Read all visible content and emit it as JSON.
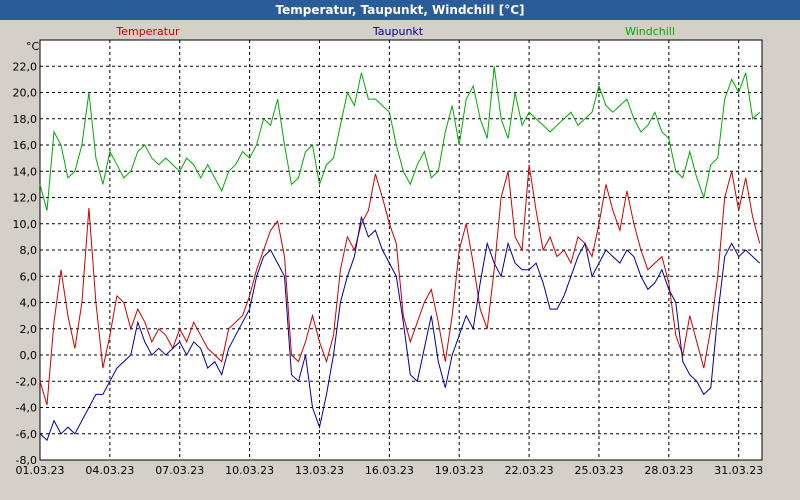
{
  "title": "Temperatur, Taupunkt, Windchill [°C]",
  "colors": {
    "plot_bg": "#ffffff",
    "grid": "#000000",
    "temperature": "#cc0000",
    "dewpoint": "#000099",
    "windchill": "#00aa00"
  },
  "chart_data": {
    "type": "line",
    "title": "Temperatur, Taupunkt, Windchill [°C]",
    "ylabel": "°C",
    "ylim": [
      -8,
      24
    ],
    "yticks": [
      "-8,0",
      "-6,0",
      "-4,0",
      "-2,0",
      "0,0",
      "2,0",
      "4,0",
      "6,0",
      "8,0",
      "10,0",
      "12,0",
      "14,0",
      "16,0",
      "18,0",
      "20,0",
      "22,0"
    ],
    "xticks": [
      "01.03.23",
      "04.03.23",
      "07.03.23",
      "10.03.23",
      "13.03.23",
      "16.03.23",
      "19.03.23",
      "22.03.23",
      "25.03.23",
      "28.03.23",
      "31.03.23"
    ],
    "x_day_range": [
      0,
      31
    ],
    "grid": true,
    "legend_placement": "top",
    "series": [
      {
        "name": "Temperatur",
        "color": "#cc0000",
        "days": [
          0,
          0.3,
          0.6,
          0.9,
          1.2,
          1.5,
          1.8,
          2.1,
          2.4,
          2.7,
          3.0,
          3.3,
          3.6,
          3.9,
          4.2,
          4.5,
          4.8,
          5.1,
          5.4,
          5.7,
          6.0,
          6.3,
          6.6,
          6.9,
          7.2,
          7.5,
          7.8,
          8.1,
          8.4,
          8.7,
          9.0,
          9.3,
          9.6,
          9.9,
          10.2,
          10.5,
          10.8,
          11.1,
          11.4,
          11.7,
          12.0,
          12.3,
          12.6,
          12.9,
          13.2,
          13.5,
          13.8,
          14.1,
          14.4,
          14.7,
          15.0,
          15.3,
          15.6,
          15.9,
          16.2,
          16.5,
          16.8,
          17.1,
          17.4,
          17.7,
          18.0,
          18.3,
          18.6,
          18.9,
          19.2,
          19.5,
          19.8,
          20.1,
          20.4,
          20.7,
          21.0,
          21.3,
          21.6,
          21.9,
          22.2,
          22.5,
          22.8,
          23.1,
          23.4,
          23.7,
          24.0,
          24.3,
          24.6,
          24.9,
          25.2,
          25.5,
          25.8,
          26.1,
          26.4,
          26.7,
          27.0,
          27.3,
          27.6,
          27.9,
          28.2,
          28.5,
          28.8,
          29.1,
          29.4,
          29.7,
          30.0,
          30.3,
          30.6,
          30.9
        ],
        "values": [
          -2.0,
          -3.8,
          2.5,
          6.5,
          3.0,
          0.5,
          4.0,
          11.2,
          4.0,
          -1.0,
          1.5,
          4.5,
          4.0,
          2.0,
          3.5,
          2.5,
          1.0,
          2.0,
          1.5,
          0.5,
          2.0,
          1.0,
          2.5,
          1.5,
          0.5,
          0.0,
          -0.5,
          2.0,
          2.5,
          3.0,
          4.5,
          6.5,
          8.0,
          9.5,
          10.2,
          7.5,
          0.0,
          -0.5,
          1.0,
          3.0,
          1.0,
          -0.5,
          1.5,
          6.5,
          9.0,
          8.0,
          10.0,
          11.0,
          13.8,
          12.0,
          10.0,
          8.5,
          3.0,
          1.0,
          2.5,
          4.0,
          5.0,
          2.5,
          -0.5,
          3.0,
          8.0,
          10.0,
          7.0,
          3.5,
          2.0,
          6.5,
          12.0,
          14.0,
          9.0,
          8.0,
          14.5,
          11.0,
          8.0,
          9.0,
          7.5,
          8.0,
          7.0,
          9.0,
          8.5,
          7.5,
          10.0,
          13.0,
          11.0,
          9.5,
          12.5,
          10.0,
          8.0,
          6.5,
          7.0,
          7.5,
          5.5,
          1.5,
          0.0,
          3.0,
          1.0,
          -1.0,
          2.0,
          6.0,
          12.0,
          14.0,
          11.0,
          13.5,
          10.5,
          8.5
        ]
      },
      {
        "name": "Taupunkt",
        "color": "#000099",
        "days": [
          0,
          0.3,
          0.6,
          0.9,
          1.2,
          1.5,
          1.8,
          2.1,
          2.4,
          2.7,
          3.0,
          3.3,
          3.6,
          3.9,
          4.2,
          4.5,
          4.8,
          5.1,
          5.4,
          5.7,
          6.0,
          6.3,
          6.6,
          6.9,
          7.2,
          7.5,
          7.8,
          8.1,
          8.4,
          8.7,
          9.0,
          9.3,
          9.6,
          9.9,
          10.2,
          10.5,
          10.8,
          11.1,
          11.4,
          11.7,
          12.0,
          12.3,
          12.6,
          12.9,
          13.2,
          13.5,
          13.8,
          14.1,
          14.4,
          14.7,
          15.0,
          15.3,
          15.6,
          15.9,
          16.2,
          16.5,
          16.8,
          17.1,
          17.4,
          17.7,
          18.0,
          18.3,
          18.6,
          18.9,
          19.2,
          19.5,
          19.8,
          20.1,
          20.4,
          20.7,
          21.0,
          21.3,
          21.6,
          21.9,
          22.2,
          22.5,
          22.8,
          23.1,
          23.4,
          23.7,
          24.0,
          24.3,
          24.6,
          24.9,
          25.2,
          25.5,
          25.8,
          26.1,
          26.4,
          26.7,
          27.0,
          27.3,
          27.6,
          27.9,
          28.2,
          28.5,
          28.8,
          29.1,
          29.4,
          29.7,
          30.0,
          30.3,
          30.6,
          30.9
        ],
        "values": [
          -6.0,
          -6.5,
          -5.0,
          -6.0,
          -5.5,
          -6.0,
          -5.0,
          -4.0,
          -3.0,
          -3.0,
          -2.0,
          -1.0,
          -0.5,
          0.0,
          2.5,
          1.0,
          0.0,
          0.5,
          0.0,
          0.5,
          1.0,
          0.0,
          1.0,
          0.5,
          -1.0,
          -0.5,
          -1.5,
          0.5,
          1.5,
          2.5,
          3.5,
          6.0,
          7.5,
          8.0,
          7.0,
          6.0,
          -1.5,
          -2.0,
          0.0,
          -4.0,
          -5.5,
          -3.0,
          0.0,
          4.0,
          6.0,
          7.5,
          10.5,
          9.0,
          9.5,
          8.0,
          7.0,
          6.0,
          2.5,
          -1.5,
          -2.0,
          0.5,
          3.0,
          -0.5,
          -2.5,
          0.0,
          1.5,
          3.0,
          2.0,
          5.5,
          8.5,
          7.0,
          6.0,
          8.5,
          7.0,
          6.5,
          6.5,
          7.0,
          5.5,
          3.5,
          3.5,
          4.5,
          6.0,
          7.5,
          8.5,
          6.0,
          7.0,
          8.0,
          7.5,
          7.0,
          8.0,
          7.5,
          6.0,
          5.0,
          5.5,
          6.5,
          5.0,
          4.0,
          -0.5,
          -1.5,
          -2.0,
          -3.0,
          -2.5,
          3.0,
          7.5,
          8.5,
          7.5,
          8.0,
          7.5,
          7.0
        ]
      },
      {
        "name": "Windchill",
        "color": "#00aa00",
        "days": [
          0,
          0.3,
          0.6,
          0.9,
          1.2,
          1.5,
          1.8,
          2.1,
          2.4,
          2.7,
          3.0,
          3.3,
          3.6,
          3.9,
          4.2,
          4.5,
          4.8,
          5.1,
          5.4,
          5.7,
          6.0,
          6.3,
          6.6,
          6.9,
          7.2,
          7.5,
          7.8,
          8.1,
          8.4,
          8.7,
          9.0,
          9.3,
          9.6,
          9.9,
          10.2,
          10.5,
          10.8,
          11.1,
          11.4,
          11.7,
          12.0,
          12.3,
          12.6,
          12.9,
          13.2,
          13.5,
          13.8,
          14.1,
          14.4,
          14.7,
          15.0,
          15.3,
          15.6,
          15.9,
          16.2,
          16.5,
          16.8,
          17.1,
          17.4,
          17.7,
          18.0,
          18.3,
          18.6,
          18.9,
          19.2,
          19.5,
          19.8,
          20.1,
          20.4,
          20.7,
          21.0,
          21.3,
          21.6,
          21.9,
          22.2,
          22.5,
          22.8,
          23.1,
          23.4,
          23.7,
          24.0,
          24.3,
          24.6,
          24.9,
          25.2,
          25.5,
          25.8,
          26.1,
          26.4,
          26.7,
          27.0,
          27.3,
          27.6,
          27.9,
          28.2,
          28.5,
          28.8,
          29.1,
          29.4,
          29.7,
          30.0,
          30.3,
          30.6,
          30.9
        ],
        "values": [
          13.0,
          11.0,
          17.0,
          16.0,
          13.5,
          14.0,
          16.0,
          20.0,
          15.0,
          13.0,
          15.5,
          14.5,
          13.5,
          14.0,
          15.5,
          16.0,
          15.0,
          14.5,
          15.0,
          14.5,
          14.0,
          15.0,
          14.5,
          13.5,
          14.5,
          13.5,
          12.5,
          14.0,
          14.5,
          15.5,
          15.0,
          16.0,
          18.0,
          17.5,
          19.5,
          16.0,
          13.0,
          13.5,
          15.5,
          16.0,
          13.0,
          14.5,
          15.0,
          17.5,
          20.0,
          19.0,
          21.5,
          19.5,
          19.5,
          19.0,
          18.5,
          16.0,
          14.0,
          13.0,
          14.5,
          15.5,
          13.5,
          14.0,
          17.0,
          19.0,
          16.0,
          19.5,
          20.5,
          18.0,
          16.5,
          22.0,
          18.0,
          16.5,
          20.0,
          17.5,
          18.5,
          18.0,
          17.5,
          17.0,
          17.5,
          18.0,
          18.5,
          17.5,
          18.0,
          18.5,
          20.5,
          19.0,
          18.5,
          19.0,
          19.5,
          18.0,
          17.0,
          17.5,
          18.5,
          17.0,
          16.5,
          14.0,
          13.5,
          15.5,
          13.5,
          12.0,
          14.5,
          15.0,
          19.5,
          21.0,
          20.0,
          21.5,
          18.0,
          18.5
        ]
      }
    ]
  }
}
